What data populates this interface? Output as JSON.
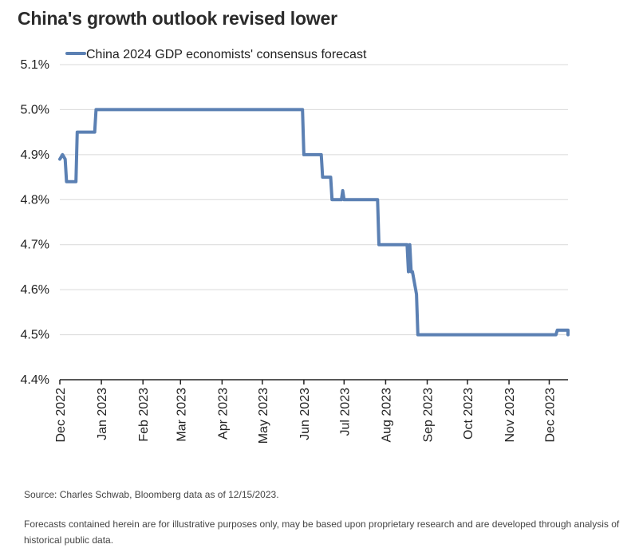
{
  "title": "China's growth outlook revised lower",
  "chart_data": {
    "type": "line",
    "title": "China's growth outlook revised lower",
    "xlabel": "",
    "ylabel": "",
    "ylim": [
      4.4,
      5.1
    ],
    "yticks": [
      4.4,
      4.5,
      4.6,
      4.7,
      4.8,
      4.9,
      5.0,
      5.1
    ],
    "ytick_labels": [
      "4.4%",
      "4.5%",
      "4.6%",
      "4.7%",
      "4.8%",
      "4.9%",
      "5.0%",
      "5.1%"
    ],
    "xlim": [
      "2022-12-01",
      "2023-12-15"
    ],
    "xticks": [
      "2022-12-01",
      "2023-01-01",
      "2023-02-01",
      "2023-03-01",
      "2023-04-01",
      "2023-05-01",
      "2023-06-01",
      "2023-07-01",
      "2023-08-01",
      "2023-09-01",
      "2023-10-01",
      "2023-11-01",
      "2023-12-01"
    ],
    "xtick_labels": [
      "Dec 2022",
      "Jan 2023",
      "Feb 2023",
      "Mar 2023",
      "Apr 2023",
      "May 2023",
      "Jun 2023",
      "Jul 2023",
      "Aug 2023",
      "Sep 2023",
      "Oct 2023",
      "Nov 2023",
      "Dec 2023"
    ],
    "grid": "horizontal",
    "legend": "top-left",
    "color": "#5b80b3",
    "series": [
      {
        "name": "China 2024 GDP economists' consensus forecast",
        "x": [
          "2022-12-01",
          "2022-12-03",
          "2022-12-05",
          "2022-12-06",
          "2022-12-13",
          "2022-12-14",
          "2022-12-27",
          "2022-12-28",
          "2023-05-31",
          "2023-06-01",
          "2023-06-14",
          "2023-06-15",
          "2023-06-21",
          "2023-06-22",
          "2023-06-29",
          "2023-06-30",
          "2023-07-01",
          "2023-07-26",
          "2023-07-27",
          "2023-08-17",
          "2023-08-18",
          "2023-08-19",
          "2023-08-20",
          "2023-08-21",
          "2023-08-24",
          "2023-08-25",
          "2023-08-27",
          "2023-12-06",
          "2023-12-07",
          "2023-12-20",
          "2023-12-21",
          "2024-01-07"
        ],
        "y": [
          4.89,
          4.9,
          4.89,
          4.84,
          4.84,
          4.95,
          4.95,
          5.0,
          5.0,
          4.9,
          4.9,
          4.85,
          4.85,
          4.8,
          4.8,
          4.82,
          4.8,
          4.8,
          4.7,
          4.7,
          4.64,
          4.7,
          4.64,
          4.64,
          4.59,
          4.5,
          4.5,
          4.5,
          4.51,
          4.51,
          4.5,
          4.5
        ]
      }
    ]
  },
  "footer": {
    "source": "Source: Charles Schwab, Bloomberg data as of 12/15/2023.",
    "disclaimer": "Forecasts contained herein are for illustrative purposes only, may be based upon proprietary research and are developed through analysis of historical public data."
  }
}
